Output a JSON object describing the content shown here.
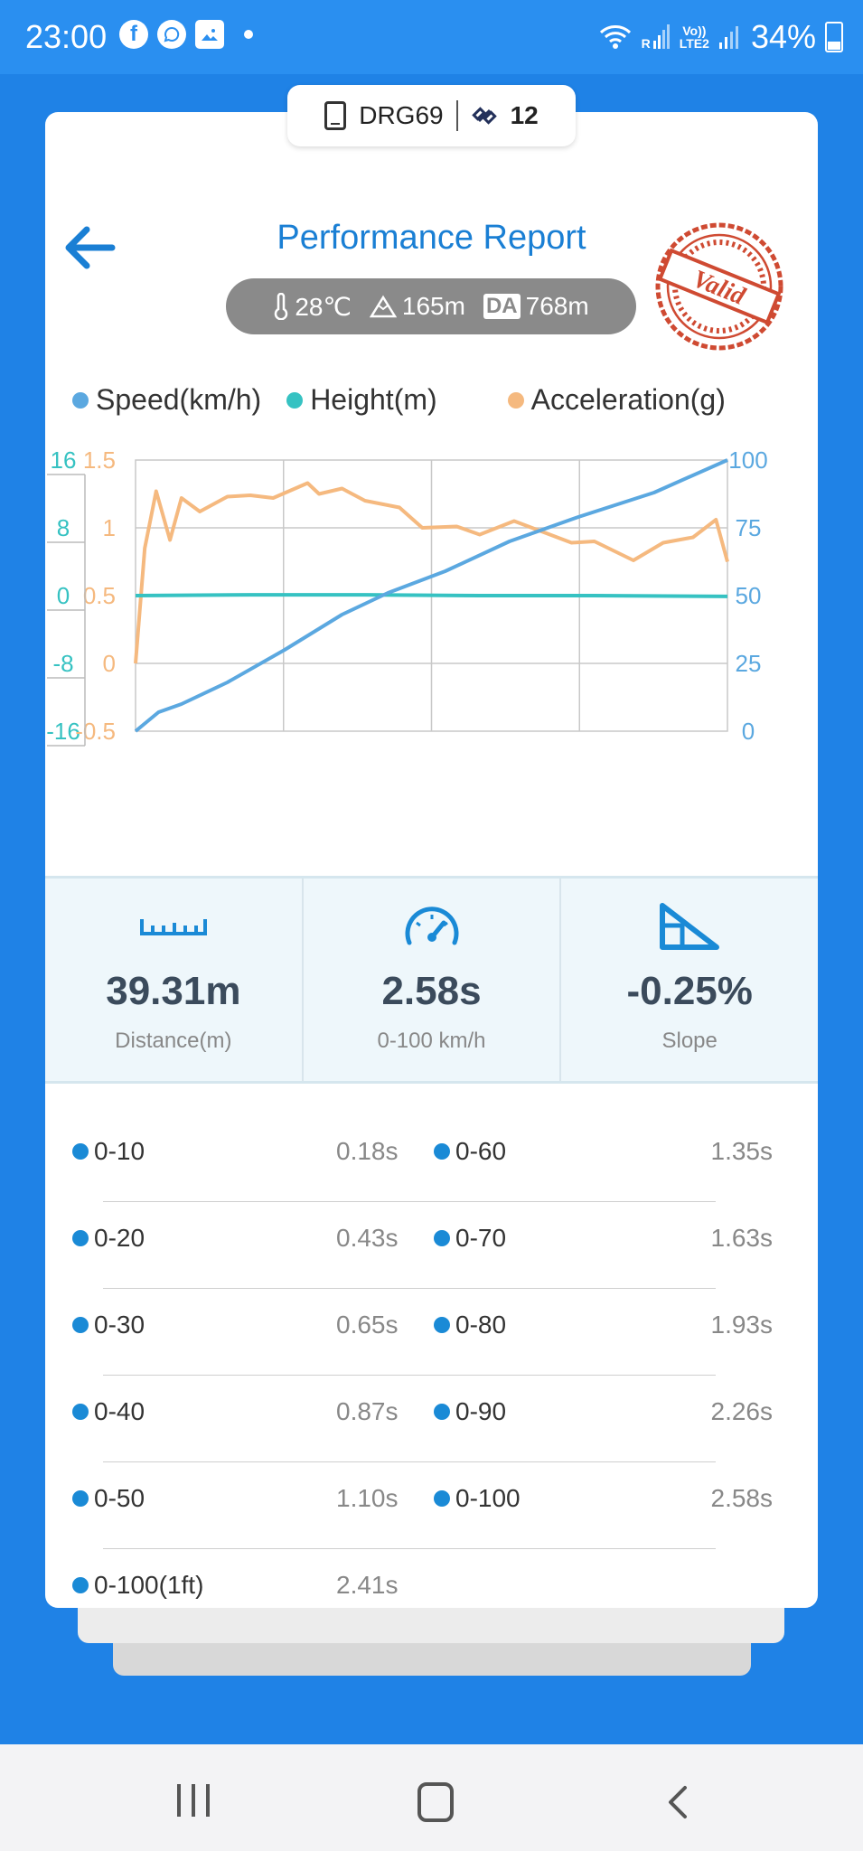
{
  "status_bar": {
    "time": "23:00",
    "notif_icons": [
      "facebook-icon",
      "whatsapp-icon",
      "gallery-icon"
    ],
    "network_label_top": "Vo))",
    "network_label_bottom": "LTE2",
    "roaming_label": "R",
    "battery": "34%"
  },
  "device": {
    "name": "DRG69",
    "satellites": "12"
  },
  "header": {
    "title": "Performance Report",
    "stamp_text": "Valid"
  },
  "conditions": {
    "temperature": "28℃",
    "altitude": "165m",
    "da_label": "DA",
    "density_altitude": "768m"
  },
  "colors": {
    "speed": "#5ba8e0",
    "height": "#36c2c2",
    "acceleration": "#f5b97f",
    "accent": "#1a7fd4"
  },
  "chart_data": {
    "type": "line",
    "legend": [
      "Speed(km/h)",
      "Height(m)",
      "Acceleration(g)"
    ],
    "height_axis": {
      "ticks": [
        "16",
        "8",
        "0",
        "-8",
        "-16"
      ],
      "range": [
        -16,
        16
      ]
    },
    "accel_axis": {
      "ticks": [
        "1.5",
        "1",
        "0.5",
        "0",
        "-0.5"
      ],
      "range": [
        -0.5,
        1.5
      ]
    },
    "speed_axis": {
      "ticks": [
        "100",
        "75",
        "50",
        "25",
        "0"
      ],
      "range": [
        0,
        100
      ]
    },
    "x_range": [
      0,
      2.58
    ],
    "grid": true,
    "series": [
      {
        "name": "Speed(km/h)",
        "x": [
          0,
          0.1,
          0.2,
          0.4,
          0.65,
          0.9,
          1.1,
          1.35,
          1.63,
          1.93,
          2.26,
          2.58
        ],
        "values": [
          0,
          7,
          10,
          18,
          30,
          43,
          51,
          59,
          70,
          79,
          88,
          100
        ]
      },
      {
        "name": "Height(m)",
        "x": [
          0,
          0.5,
          1.0,
          1.5,
          2.0,
          2.58
        ],
        "values": [
          0,
          0.1,
          0.1,
          0,
          0,
          -0.1
        ]
      },
      {
        "name": "Acceleration(g)",
        "x": [
          0,
          0.04,
          0.09,
          0.15,
          0.2,
          0.28,
          0.4,
          0.5,
          0.6,
          0.75,
          0.8,
          0.9,
          1.0,
          1.15,
          1.25,
          1.4,
          1.5,
          1.65,
          1.9,
          2.0,
          2.17,
          2.3,
          2.43,
          2.53,
          2.58
        ],
        "values": [
          0.0,
          0.85,
          1.27,
          0.91,
          1.22,
          1.12,
          1.23,
          1.24,
          1.22,
          1.33,
          1.25,
          1.29,
          1.2,
          1.15,
          1.0,
          1.01,
          0.95,
          1.05,
          0.89,
          0.9,
          0.76,
          0.89,
          0.93,
          1.06,
          0.75
        ]
      }
    ]
  },
  "stats": [
    {
      "icon": "ruler-icon",
      "value": "39.31m",
      "label": "Distance(m)"
    },
    {
      "icon": "speedometer-icon",
      "value": "2.58s",
      "label": "0-100 km/h"
    },
    {
      "icon": "slope-icon",
      "value": "-0.25%",
      "label": "Slope"
    }
  ],
  "splits": [
    {
      "left_label": "0-10",
      "left_time": "0.18s",
      "right_label": "0-60",
      "right_time": "1.35s"
    },
    {
      "left_label": "0-20",
      "left_time": "0.43s",
      "right_label": "0-70",
      "right_time": "1.63s"
    },
    {
      "left_label": "0-30",
      "left_time": "0.65s",
      "right_label": "0-80",
      "right_time": "1.93s"
    },
    {
      "left_label": "0-40",
      "left_time": "0.87s",
      "right_label": "0-90",
      "right_time": "2.26s"
    },
    {
      "left_label": "0-50",
      "left_time": "1.10s",
      "right_label": "0-100",
      "right_time": "2.58s"
    },
    {
      "left_label": "0-100(1ft)",
      "left_time": "2.41s"
    }
  ]
}
